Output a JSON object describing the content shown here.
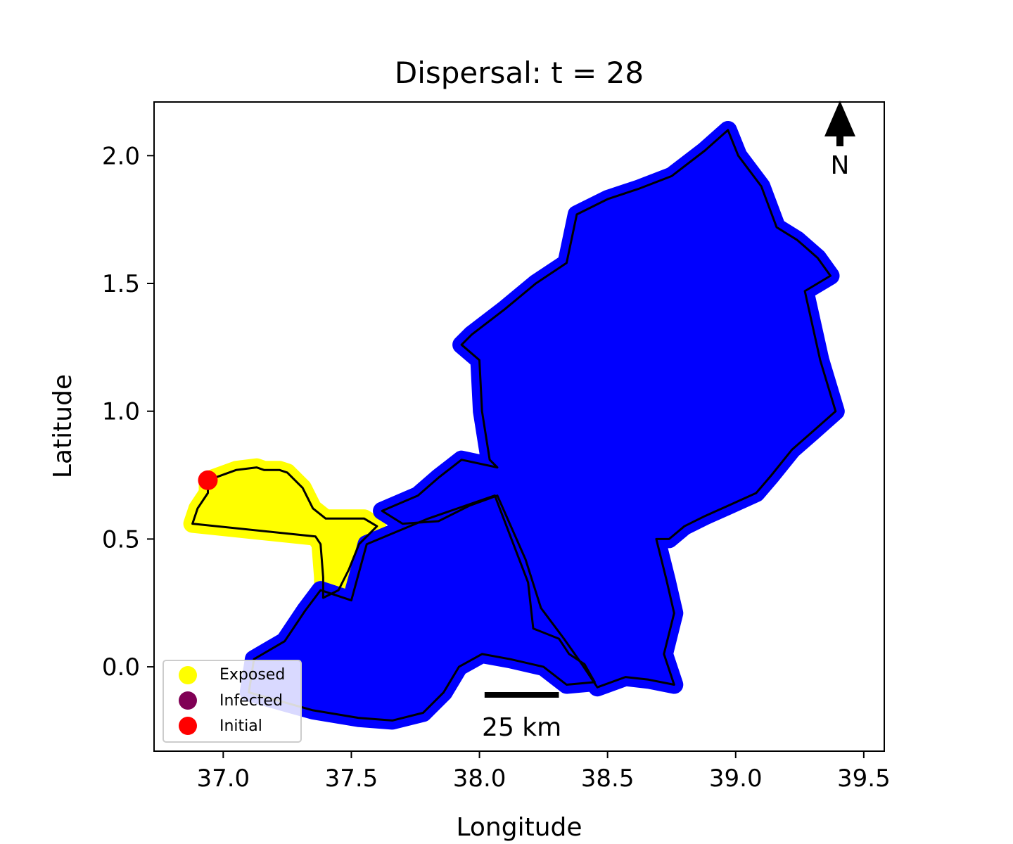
{
  "figure": {
    "title": "Dispersal: t = 28",
    "xlabel": "Longitude",
    "ylabel": "Latitude",
    "xlim": [
      36.73,
      39.58
    ],
    "ylim": [
      -0.33,
      2.21
    ],
    "xticks": [
      {
        "value": 37.0,
        "label": "37.0"
      },
      {
        "value": 37.5,
        "label": "37.5"
      },
      {
        "value": 38.0,
        "label": "38.0"
      },
      {
        "value": 38.5,
        "label": "38.5"
      },
      {
        "value": 39.0,
        "label": "39.0"
      },
      {
        "value": 39.5,
        "label": "39.5"
      }
    ],
    "yticks": [
      {
        "value": 0.0,
        "label": "0.0"
      },
      {
        "value": 0.5,
        "label": "0.5"
      },
      {
        "value": 1.0,
        "label": "1.0"
      },
      {
        "value": 1.5,
        "label": "1.5"
      },
      {
        "value": 2.0,
        "label": "2.0"
      }
    ],
    "north_arrow_label": "N",
    "scale_bar": {
      "label": "25 km",
      "from_lon": 38.02,
      "to_lon": 38.31,
      "lat": -0.11
    },
    "legend": {
      "placement": "lower-left",
      "items": [
        {
          "label": "Exposed",
          "color": "#ffff00"
        },
        {
          "label": "Infected",
          "color": "#800055"
        },
        {
          "label": "Initial",
          "color": "#ff0000"
        }
      ]
    },
    "colors": {
      "exposed": "#ffff00",
      "infected": "#800055",
      "initial": "#ff0000",
      "other": "#0000ff",
      "boundary": "#000000"
    },
    "initial_point": {
      "lon": 36.94,
      "lat": 0.73
    },
    "regions": {
      "west": [
        [
          36.94,
          0.73
        ],
        [
          37.05,
          0.77
        ],
        [
          37.13,
          0.78
        ],
        [
          37.16,
          0.77
        ],
        [
          37.22,
          0.77
        ],
        [
          37.25,
          0.76
        ],
        [
          37.31,
          0.7
        ],
        [
          37.35,
          0.62
        ],
        [
          37.4,
          0.58
        ],
        [
          37.48,
          0.58
        ],
        [
          37.55,
          0.58
        ],
        [
          37.6,
          0.55
        ],
        [
          37.53,
          0.48
        ],
        [
          37.49,
          0.38
        ],
        [
          37.45,
          0.3
        ],
        [
          37.39,
          0.27
        ],
        [
          37.39,
          0.35
        ],
        [
          37.38,
          0.48
        ],
        [
          37.36,
          0.51
        ],
        [
          36.88,
          0.56
        ],
        [
          36.9,
          0.62
        ],
        [
          36.94,
          0.68
        ]
      ],
      "south": [
        [
          37.38,
          0.3
        ],
        [
          37.5,
          0.26
        ],
        [
          37.56,
          0.48
        ],
        [
          37.8,
          0.58
        ],
        [
          38.06,
          0.67
        ],
        [
          38.19,
          0.33
        ],
        [
          38.21,
          0.15
        ],
        [
          38.31,
          0.11
        ],
        [
          38.35,
          0.05
        ],
        [
          38.41,
          0.01
        ],
        [
          38.45,
          -0.06
        ],
        [
          38.34,
          -0.07
        ],
        [
          38.25,
          0.0
        ],
        [
          38.12,
          0.03
        ],
        [
          38.01,
          0.05
        ],
        [
          37.92,
          0.0
        ],
        [
          37.86,
          -0.1
        ],
        [
          37.78,
          -0.18
        ],
        [
          37.66,
          -0.21
        ],
        [
          37.53,
          -0.2
        ],
        [
          37.35,
          -0.17
        ],
        [
          37.1,
          -0.1
        ],
        [
          37.12,
          0.03
        ],
        [
          37.24,
          0.1
        ],
        [
          37.32,
          0.22
        ]
      ],
      "east": [
        [
          38.07,
          0.78
        ],
        [
          38.04,
          0.81
        ],
        [
          38.01,
          1.0
        ],
        [
          38.0,
          1.2
        ],
        [
          37.93,
          1.26
        ],
        [
          37.97,
          1.3
        ],
        [
          38.1,
          1.4
        ],
        [
          38.22,
          1.5
        ],
        [
          38.34,
          1.58
        ],
        [
          38.38,
          1.77
        ],
        [
          38.5,
          1.83
        ],
        [
          38.62,
          1.87
        ],
        [
          38.75,
          1.92
        ],
        [
          38.88,
          2.02
        ],
        [
          38.97,
          2.1
        ],
        [
          39.01,
          2.0
        ],
        [
          39.1,
          1.88
        ],
        [
          39.16,
          1.72
        ],
        [
          39.24,
          1.67
        ],
        [
          39.32,
          1.6
        ],
        [
          39.37,
          1.53
        ],
        [
          39.27,
          1.47
        ],
        [
          39.33,
          1.2
        ],
        [
          39.39,
          1.0
        ],
        [
          39.3,
          0.92
        ],
        [
          39.22,
          0.85
        ],
        [
          39.14,
          0.75
        ],
        [
          39.08,
          0.68
        ],
        [
          38.97,
          0.63
        ],
        [
          38.88,
          0.59
        ],
        [
          38.8,
          0.55
        ],
        [
          38.74,
          0.5
        ],
        [
          38.69,
          0.5
        ],
        [
          38.73,
          0.34
        ],
        [
          38.76,
          0.21
        ],
        [
          38.72,
          0.05
        ],
        [
          38.76,
          -0.07
        ],
        [
          38.66,
          -0.05
        ],
        [
          38.57,
          -0.04
        ],
        [
          38.46,
          -0.08
        ],
        [
          38.4,
          0.01
        ],
        [
          38.33,
          0.11
        ],
        [
          38.24,
          0.23
        ],
        [
          38.18,
          0.42
        ],
        [
          38.07,
          0.67
        ],
        [
          37.96,
          0.63
        ],
        [
          37.84,
          0.57
        ],
        [
          37.7,
          0.56
        ],
        [
          37.62,
          0.61
        ],
        [
          37.76,
          0.67
        ],
        [
          37.84,
          0.74
        ],
        [
          37.93,
          0.81
        ]
      ]
    }
  }
}
